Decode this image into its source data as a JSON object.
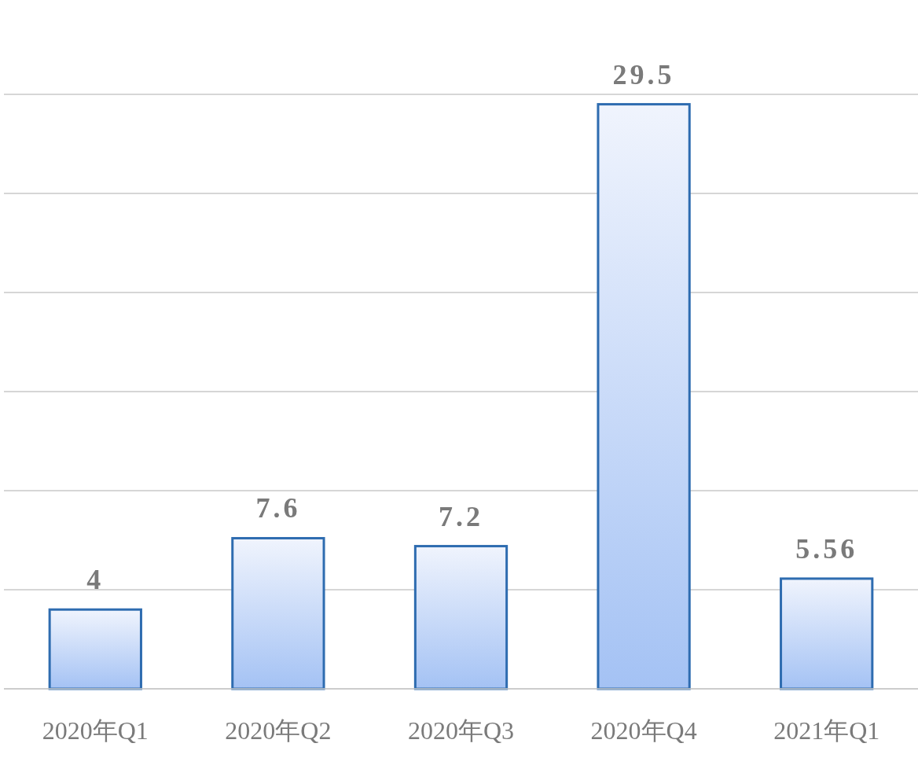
{
  "chart_data": {
    "type": "bar",
    "categories": [
      "2020年Q1",
      "2020年Q2",
      "2020年Q3",
      "2020年Q4",
      "2021年Q1"
    ],
    "values": [
      4,
      7.6,
      7.2,
      29.5,
      5.56
    ],
    "color": "#2e6cb0",
    "data_labels": true,
    "ylim": [
      0,
      30
    ],
    "yticks": [
      {
        "value": 0,
        "label": null
      },
      {
        "value": 5,
        "label": null
      },
      {
        "value": 10,
        "label": null
      },
      {
        "value": 15,
        "label": null
      },
      {
        "value": 20,
        "label": null
      },
      {
        "value": 25,
        "label": null
      },
      {
        "value": 30,
        "label": null
      }
    ],
    "grid": "y",
    "tick_labels": "x"
  }
}
